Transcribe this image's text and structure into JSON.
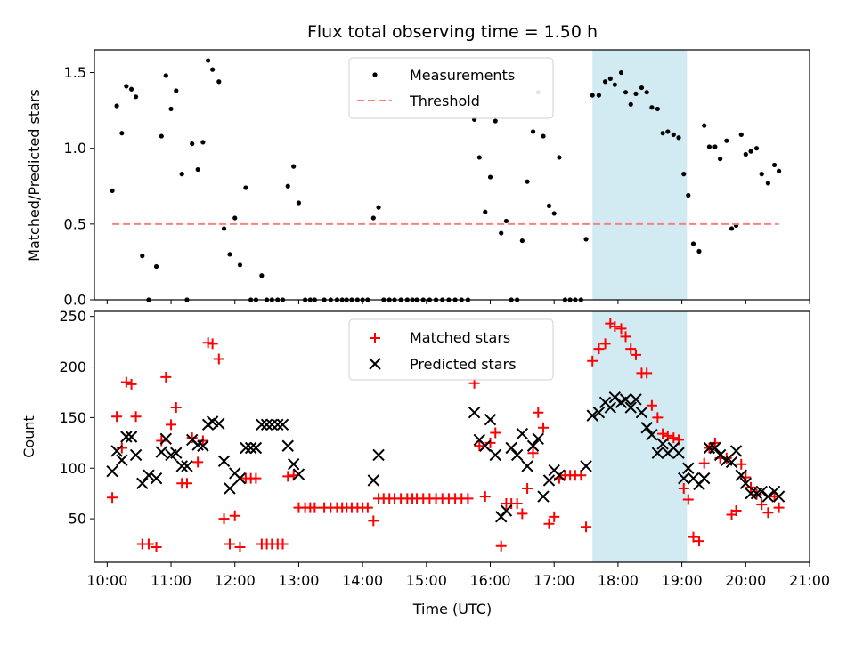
{
  "chart_data": [
    {
      "type": "scatter",
      "title": "Flux total observing time = 1.50 h",
      "xlabel": "",
      "ylabel": "Matched/Predicted stars",
      "xlim": [
        9.8,
        21.0
      ],
      "ylim": [
        0,
        1.65
      ],
      "yticks": [
        0.0,
        0.5,
        1.0,
        1.5
      ],
      "ytick_labels": [
        "0.0",
        "0.5",
        "1.0",
        "1.5"
      ],
      "highlight_span": [
        17.6,
        19.08
      ],
      "highlight_color": "#add8e6",
      "legend": {
        "position": "top-center",
        "entries": [
          "Measurements",
          "Threshold"
        ]
      },
      "series": [
        {
          "name": "Measurements",
          "marker": "dot",
          "color": "#000000",
          "x": [
            10.08,
            10.15,
            10.23,
            10.3,
            10.38,
            10.45,
            10.55,
            10.65,
            10.77,
            10.85,
            10.92,
            11.0,
            11.08,
            11.17,
            11.25,
            11.33,
            11.42,
            11.5,
            11.58,
            11.65,
            11.75,
            11.83,
            11.92,
            12.0,
            12.08,
            12.17,
            12.25,
            12.33,
            12.42,
            12.5,
            12.58,
            12.67,
            12.75,
            12.83,
            12.92,
            13.0,
            13.1,
            13.18,
            13.25,
            13.4,
            13.5,
            13.6,
            13.68,
            13.75,
            13.83,
            13.92,
            14.0,
            14.08,
            14.17,
            14.25,
            14.33,
            14.42,
            14.5,
            14.6,
            14.7,
            14.78,
            14.85,
            14.95,
            15.05,
            15.15,
            15.25,
            15.35,
            15.45,
            15.55,
            15.65,
            15.75,
            15.83,
            15.92,
            16.0,
            16.08,
            16.17,
            16.25,
            16.33,
            16.42,
            16.5,
            16.58,
            16.67,
            16.75,
            16.83,
            16.92,
            17.0,
            17.08,
            17.17,
            17.25,
            17.33,
            17.42,
            17.5,
            17.6,
            17.7,
            17.8,
            17.88,
            17.95,
            18.05,
            18.12,
            18.2,
            18.28,
            18.37,
            18.45,
            18.53,
            18.62,
            18.7,
            18.78,
            18.87,
            18.95,
            19.03,
            19.1,
            19.18,
            19.27,
            19.35,
            19.43,
            19.52,
            19.6,
            19.7,
            19.78,
            19.85,
            19.93,
            20.0,
            20.08,
            20.17,
            20.25,
            20.35,
            20.45,
            20.52
          ],
          "y": [
            0.72,
            1.28,
            1.1,
            1.41,
            1.39,
            1.34,
            0.29,
            0.0,
            0.22,
            1.08,
            1.48,
            1.26,
            1.38,
            0.83,
            0.0,
            1.03,
            0.86,
            1.04,
            1.58,
            1.52,
            1.44,
            0.47,
            0.3,
            0.54,
            0.23,
            0.74,
            0.0,
            0.0,
            0.16,
            0.0,
            0.0,
            0.0,
            0.0,
            0.75,
            0.88,
            0.64,
            0.0,
            0.0,
            0.0,
            0.0,
            0.0,
            0.0,
            0.0,
            0.0,
            0.0,
            0.0,
            0.0,
            0.0,
            0.54,
            0.61,
            0.0,
            0.0,
            0.0,
            0.0,
            0.0,
            0.0,
            0.0,
            0.0,
            0.0,
            0.0,
            0.0,
            0.0,
            0.0,
            0.0,
            0.0,
            1.19,
            0.94,
            0.58,
            0.81,
            1.18,
            0.44,
            0.52,
            0.0,
            0.0,
            0.39,
            0.78,
            1.11,
            1.37,
            1.08,
            0.62,
            0.57,
            0.94,
            0.0,
            0.0,
            0.0,
            0.0,
            0.4,
            1.35,
            1.35,
            1.44,
            1.46,
            1.42,
            1.5,
            1.37,
            1.29,
            1.36,
            1.4,
            1.37,
            1.27,
            1.26,
            1.1,
            1.11,
            1.09,
            1.07,
            0.83,
            0.69,
            0.37,
            0.32,
            1.15,
            1.01,
            1.01,
            0.93,
            1.05,
            0.47,
            0.49,
            1.09,
            0.96,
            0.98,
            1.0,
            0.83,
            0.77,
            0.89,
            0.85
          ]
        },
        {
          "name": "Threshold",
          "marker": "dashed-line",
          "color": "#ff7f7f",
          "x": [
            10.08,
            20.52
          ],
          "y": [
            0.5,
            0.5
          ]
        }
      ]
    },
    {
      "type": "scatter",
      "title": "",
      "xlabel": "Time (UTC)",
      "ylabel": "Count",
      "xlim": [
        9.8,
        21.0
      ],
      "ylim": [
        7,
        255
      ],
      "yticks": [
        50,
        100,
        150,
        200,
        250
      ],
      "ytick_labels": [
        "50",
        "100",
        "150",
        "200",
        "250"
      ],
      "xticks": [
        10,
        11,
        12,
        13,
        14,
        15,
        16,
        17,
        18,
        19,
        20,
        21
      ],
      "xtick_labels": [
        "10:00",
        "11:00",
        "12:00",
        "13:00",
        "14:00",
        "15:00",
        "16:00",
        "17:00",
        "18:00",
        "19:00",
        "20:00",
        "21:00"
      ],
      "highlight_span": [
        17.6,
        19.08
      ],
      "highlight_color": "#add8e6",
      "legend": {
        "position": "top-center",
        "entries": [
          "Matched stars",
          "Predicted stars"
        ]
      },
      "series": [
        {
          "name": "Matched stars",
          "marker": "plus",
          "color": "#ff0000",
          "x": [
            10.08,
            10.15,
            10.23,
            10.3,
            10.38,
            10.45,
            10.55,
            10.65,
            10.77,
            10.85,
            10.92,
            11.0,
            11.08,
            11.17,
            11.25,
            11.33,
            11.42,
            11.5,
            11.58,
            11.65,
            11.75,
            11.83,
            11.92,
            12.0,
            12.08,
            12.17,
            12.25,
            12.33,
            12.42,
            12.5,
            12.58,
            12.67,
            12.75,
            12.83,
            12.92,
            13.0,
            13.1,
            13.18,
            13.25,
            13.4,
            13.5,
            13.6,
            13.68,
            13.75,
            13.83,
            13.92,
            14.0,
            14.08,
            14.17,
            14.25,
            14.33,
            14.42,
            14.5,
            14.6,
            14.7,
            14.78,
            14.85,
            14.95,
            15.05,
            15.15,
            15.25,
            15.35,
            15.45,
            15.55,
            15.65,
            15.75,
            15.83,
            15.92,
            16.0,
            16.08,
            16.17,
            16.25,
            16.33,
            16.42,
            16.5,
            16.58,
            16.67,
            16.75,
            16.83,
            16.92,
            17.0,
            17.08,
            17.17,
            17.25,
            17.33,
            17.42,
            17.5,
            17.6,
            17.7,
            17.8,
            17.88,
            17.95,
            18.05,
            18.12,
            18.2,
            18.28,
            18.37,
            18.45,
            18.53,
            18.62,
            18.7,
            18.78,
            18.87,
            18.95,
            19.03,
            19.1,
            19.18,
            19.27,
            19.35,
            19.43,
            19.52,
            19.6,
            19.7,
            19.78,
            19.85,
            19.93,
            20.0,
            20.08,
            20.17,
            20.25,
            20.35,
            20.45,
            20.52
          ],
          "y": [
            71,
            151,
            120,
            185,
            183,
            151,
            25,
            25,
            22,
            127,
            190,
            143,
            160,
            85,
            85,
            130,
            106,
            127,
            224,
            223,
            208,
            50,
            25,
            53,
            22,
            90,
            90,
            90,
            25,
            25,
            25,
            25,
            25,
            92,
            93,
            61,
            61,
            61,
            61,
            61,
            61,
            61,
            61,
            61,
            61,
            61,
            61,
            61,
            48,
            70,
            70,
            70,
            70,
            70,
            70,
            70,
            70,
            70,
            70,
            70,
            70,
            70,
            70,
            70,
            70,
            184,
            122,
            72,
            125,
            135,
            23,
            65,
            65,
            65,
            55,
            80,
            115,
            155,
            140,
            45,
            52,
            90,
            93,
            93,
            93,
            93,
            42,
            206,
            218,
            223,
            243,
            240,
            238,
            230,
            218,
            212,
            194,
            194,
            162,
            150,
            134,
            132,
            130,
            128,
            80,
            69,
            32,
            28,
            105,
            120,
            125,
            110,
            110,
            54,
            58,
            104,
            91,
            81,
            74,
            64,
            56,
            72,
            61
          ]
        },
        {
          "name": "Predicted stars",
          "marker": "x",
          "color": "#000000",
          "x": [
            10.08,
            10.15,
            10.23,
            10.3,
            10.38,
            10.45,
            10.55,
            10.65,
            10.77,
            10.85,
            10.92,
            11.0,
            11.08,
            11.17,
            11.25,
            11.33,
            11.42,
            11.5,
            11.58,
            11.65,
            11.75,
            11.83,
            11.92,
            12.0,
            12.08,
            12.17,
            12.25,
            12.33,
            12.42,
            12.5,
            12.58,
            12.67,
            12.75,
            12.83,
            12.92,
            13.0,
            14.17,
            14.25,
            15.75,
            15.83,
            15.92,
            16.0,
            16.08,
            16.17,
            16.25,
            16.33,
            16.42,
            16.5,
            16.58,
            16.67,
            16.75,
            16.83,
            16.92,
            17.0,
            17.08,
            17.5,
            17.6,
            17.7,
            17.8,
            17.88,
            17.95,
            18.05,
            18.12,
            18.2,
            18.28,
            18.37,
            18.45,
            18.53,
            18.62,
            18.7,
            18.78,
            18.87,
            18.95,
            19.03,
            19.1,
            19.18,
            19.27,
            19.35,
            19.43,
            19.52,
            19.6,
            19.7,
            19.78,
            19.85,
            19.93,
            20.0,
            20.08,
            20.17,
            20.25,
            20.35,
            20.45,
            20.52
          ],
          "y": [
            97,
            117,
            108,
            131,
            131,
            113,
            85,
            93,
            90,
            116,
            129,
            113,
            115,
            102,
            102,
            128,
            123,
            122,
            143,
            146,
            144,
            107,
            80,
            95,
            90,
            120,
            120,
            120,
            143,
            143,
            143,
            143,
            143,
            122,
            104,
            94,
            88,
            113,
            155,
            128,
            122,
            148,
            113,
            52,
            58,
            120,
            113,
            134,
            102,
            122,
            129,
            72,
            88,
            98,
            93,
            102,
            152,
            155,
            165,
            160,
            170,
            165,
            168,
            160,
            168,
            155,
            140,
            133,
            115,
            124,
            115,
            120,
            115,
            90,
            100,
            90,
            84,
            90,
            120,
            120,
            113,
            108,
            106,
            117,
            93,
            85,
            75,
            75,
            77,
            72,
            77,
            72
          ]
        }
      ]
    }
  ]
}
